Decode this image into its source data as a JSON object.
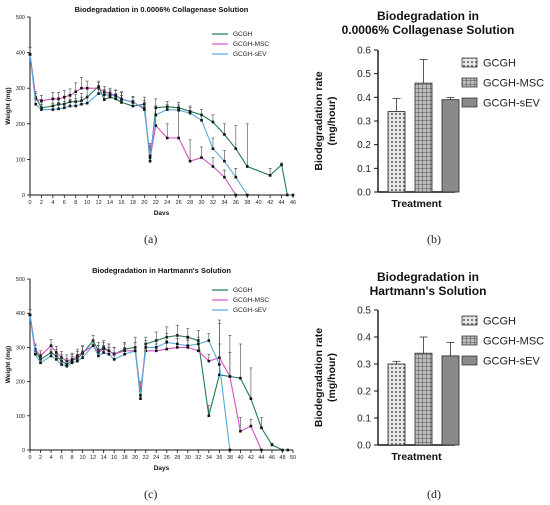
{
  "captions": {
    "a": "(a)",
    "b": "(b)",
    "c": "(c)",
    "d": "(d)"
  },
  "colors": {
    "GCGH": "#1f7a5a",
    "GCGH-MSC": "#d64fc5",
    "GCGH-sEV": "#5aa9dd",
    "bar_fill": "#8a8a8a",
    "bar_edge": "#222222"
  },
  "chart_data": [
    {
      "id": "a",
      "type": "line",
      "title": "Biodegradation in 0.0006% Collagenase Solution",
      "xlabel": "Days",
      "ylabel": "Weight (mg)",
      "xlim": [
        0,
        46
      ],
      "ylim": [
        0,
        500
      ],
      "xticks": [
        0,
        2,
        4,
        6,
        8,
        10,
        12,
        14,
        16,
        18,
        20,
        22,
        24,
        26,
        28,
        30,
        32,
        34,
        36,
        38,
        40,
        42,
        44,
        46
      ],
      "yticks": [
        0,
        100,
        200,
        300,
        400,
        500
      ],
      "legend_position": "top-right",
      "series": [
        {
          "name": "GCGH",
          "color": "#1f7a5a",
          "x": [
            0,
            1,
            2,
            4,
            5,
            6,
            7,
            8,
            9,
            10,
            12,
            13,
            14,
            15,
            16,
            18,
            20,
            21,
            22,
            24,
            26,
            28,
            30,
            32,
            34,
            36,
            38,
            40,
            42,
            44,
            45,
            46
          ],
          "y": [
            395,
            275,
            245,
            250,
            255,
            255,
            262,
            262,
            265,
            275,
            305,
            268,
            275,
            270,
            260,
            250,
            255,
            95,
            245,
            248,
            245,
            235,
            225,
            205,
            170,
            130,
            80,
            null,
            55,
            85,
            0,
            0
          ],
          "err": [
            20,
            15,
            15,
            18,
            18,
            20,
            20,
            20,
            20,
            25,
            15,
            15,
            15,
            15,
            20,
            15,
            20,
            40,
            25,
            15,
            15,
            15,
            15,
            20,
            30,
            65,
            120,
            null,
            20,
            5,
            0,
            0
          ]
        },
        {
          "name": "GCGH-MSC",
          "color": "#d64fc5",
          "x": [
            0,
            1,
            2,
            4,
            5,
            6,
            7,
            8,
            9,
            10,
            12,
            13,
            14,
            15,
            16,
            18,
            20,
            21,
            22,
            24,
            26,
            28,
            30,
            32,
            34,
            36
          ],
          "y": [
            395,
            270,
            265,
            270,
            270,
            275,
            280,
            290,
            300,
            300,
            300,
            290,
            285,
            280,
            270,
            260,
            245,
            105,
            195,
            160,
            160,
            95,
            105,
            80,
            50,
            0
          ],
          "err": [
            20,
            15,
            15,
            18,
            18,
            18,
            18,
            25,
            30,
            20,
            15,
            15,
            15,
            15,
            20,
            15,
            20,
            35,
            25,
            40,
            80,
            60,
            30,
            25,
            20,
            0
          ]
        },
        {
          "name": "GCGH-sEV",
          "color": "#5aa9dd",
          "x": [
            0,
            1,
            2,
            4,
            5,
            6,
            7,
            8,
            9,
            10,
            12,
            13,
            14,
            15,
            16,
            18,
            20,
            21,
            22,
            24,
            26,
            28,
            30,
            32,
            34,
            36,
            38
          ],
          "y": [
            395,
            255,
            240,
            240,
            242,
            245,
            250,
            250,
            255,
            258,
            285,
            282,
            280,
            278,
            268,
            262,
            240,
            110,
            225,
            240,
            238,
            230,
            210,
            130,
            95,
            50,
            0
          ],
          "err": [
            20,
            15,
            15,
            18,
            18,
            18,
            18,
            20,
            20,
            20,
            15,
            15,
            15,
            15,
            20,
            15,
            20,
            35,
            25,
            15,
            15,
            15,
            15,
            30,
            30,
            25,
            0
          ]
        }
      ]
    },
    {
      "id": "b",
      "type": "bar",
      "title": "Biodegradation in 0.0006% Collagenase Solution",
      "title_lines": [
        "Biodegradation in",
        "0.0006% Collagenase Solution"
      ],
      "xlabel": "Treatment",
      "ylabel": "Biodegradation rate (mg/hour)",
      "ylabel_lines": [
        "Biodegradation rate",
        "(mg/hour)"
      ],
      "ylim": [
        0,
        0.6
      ],
      "yticks": [
        "0.0",
        "0.1",
        "0.2",
        "0.3",
        "0.4",
        "0.5",
        "0.6"
      ],
      "categories": [
        "GCGH",
        "GCGH-MSC",
        "GCGH-sEV"
      ],
      "values": [
        0.34,
        0.46,
        0.39
      ],
      "errors": [
        0.055,
        0.1,
        0.01
      ],
      "legend_position": "right"
    },
    {
      "id": "c",
      "type": "line",
      "title": "Biodegradation in Hartmann's Solution",
      "xlabel": "Days",
      "ylabel": "Weight (mg)",
      "xlim": [
        0,
        50
      ],
      "ylim": [
        0,
        500
      ],
      "xticks": [
        0,
        2,
        4,
        6,
        8,
        10,
        12,
        14,
        16,
        18,
        20,
        22,
        24,
        26,
        28,
        30,
        32,
        34,
        36,
        38,
        40,
        42,
        44,
        46,
        48,
        50
      ],
      "yticks": [
        0,
        100,
        200,
        300,
        400,
        500
      ],
      "legend_position": "top-right",
      "series": [
        {
          "name": "GCGH",
          "color": "#1f7a5a",
          "x": [
            0,
            1,
            2,
            4,
            5,
            6,
            7,
            8,
            9,
            10,
            12,
            13,
            14,
            15,
            16,
            18,
            20,
            21,
            22,
            24,
            26,
            28,
            30,
            32,
            34,
            36,
            38,
            40,
            42,
            44,
            46,
            48,
            49
          ],
          "y": [
            395,
            290,
            265,
            285,
            275,
            260,
            250,
            262,
            268,
            282,
            320,
            290,
            300,
            290,
            280,
            295,
            300,
            150,
            310,
            320,
            330,
            335,
            330,
            320,
            100,
            220,
            215,
            210,
            150,
            65,
            15,
            0,
            0
          ],
          "err": [
            15,
            15,
            15,
            18,
            18,
            18,
            18,
            18,
            20,
            20,
            15,
            25,
            20,
            20,
            20,
            20,
            30,
            30,
            20,
            25,
            30,
            30,
            25,
            30,
            30,
            160,
            120,
            100,
            90,
            30,
            5,
            0,
            0
          ]
        },
        {
          "name": "GCGH-MSC",
          "color": "#d64fc5",
          "x": [
            0,
            1,
            2,
            4,
            5,
            6,
            7,
            8,
            9,
            10,
            12,
            13,
            14,
            15,
            16,
            18,
            20,
            21,
            22,
            24,
            26,
            28,
            30,
            32,
            34,
            36,
            38,
            40,
            42,
            44
          ],
          "y": [
            395,
            295,
            275,
            305,
            285,
            270,
            260,
            265,
            275,
            285,
            305,
            285,
            295,
            290,
            280,
            290,
            290,
            175,
            290,
            290,
            295,
            300,
            300,
            290,
            260,
            270,
            215,
            55,
            70,
            0
          ],
          "err": [
            15,
            15,
            15,
            18,
            18,
            18,
            18,
            18,
            20,
            20,
            15,
            20,
            20,
            20,
            20,
            20,
            25,
            25,
            20,
            20,
            25,
            25,
            20,
            20,
            20,
            100,
            70,
            40,
            20,
            0
          ]
        },
        {
          "name": "GCGH-sEV",
          "color": "#5aa9dd",
          "x": [
            0,
            1,
            2,
            4,
            5,
            6,
            7,
            8,
            9,
            10,
            12,
            13,
            14,
            15,
            16,
            18,
            20,
            21,
            22,
            24,
            26,
            28,
            30,
            32,
            34,
            36,
            38
          ],
          "y": [
            395,
            280,
            255,
            275,
            265,
            250,
            245,
            255,
            260,
            270,
            305,
            275,
            285,
            280,
            265,
            280,
            290,
            160,
            300,
            300,
            315,
            310,
            305,
            310,
            320,
            250,
            0
          ],
          "err": [
            15,
            15,
            15,
            18,
            18,
            18,
            18,
            18,
            20,
            20,
            15,
            20,
            20,
            20,
            20,
            20,
            25,
            25,
            20,
            20,
            25,
            25,
            20,
            20,
            20,
            60,
            0
          ]
        }
      ]
    },
    {
      "id": "d",
      "type": "bar",
      "title": "Biodegradation in Hartmann's Solution",
      "title_lines": [
        "Biodegradation in",
        "Hartmann's Solution"
      ],
      "xlabel": "Treatment",
      "ylabel": "Biodegradation rate (mg/hour)",
      "ylabel_lines": [
        "Biodegradation rate",
        "(mg/hour)"
      ],
      "ylim": [
        0,
        0.5
      ],
      "yticks": [
        "0.0",
        "0.1",
        "0.2",
        "0.3",
        "0.4",
        "0.5"
      ],
      "categories": [
        "GCGH",
        "GCGH-MSC",
        "GCGH-sEV"
      ],
      "values": [
        0.3,
        0.34,
        0.33
      ],
      "errors": [
        0.01,
        0.06,
        0.05
      ],
      "legend_position": "right"
    }
  ]
}
